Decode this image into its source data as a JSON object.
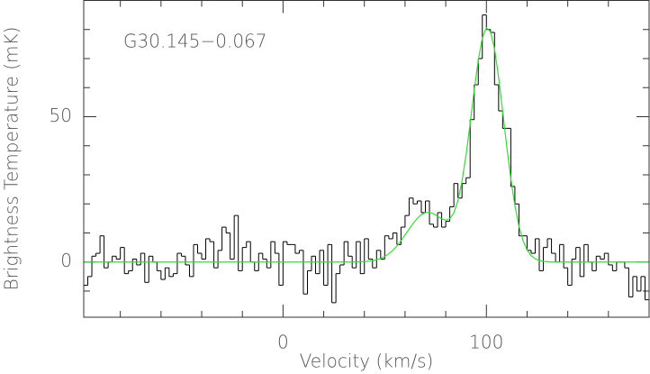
{
  "chart_data": {
    "type": "step",
    "annotation": "G30.145−0.067",
    "xlabel": "Velocity (km/s)",
    "ylabel": "Brightness Temperature (mK)",
    "xlim": [
      -98,
      180
    ],
    "ylim": [
      -19,
      90
    ],
    "xticks": [
      0,
      100
    ],
    "yticks": [
      0,
      50
    ],
    "xminor_ticks": [
      -80,
      -60,
      -40,
      -20,
      20,
      40,
      60,
      80,
      120,
      140,
      160
    ],
    "yminor_ticks": [
      -10,
      10,
      20,
      30,
      40,
      60,
      70,
      80
    ],
    "series": [
      {
        "type": "step",
        "color": "#000000",
        "x": [
          -97,
          -95,
          -93,
          -91,
          -89,
          -87,
          -85,
          -83,
          -81,
          -79,
          -77,
          -75,
          -73,
          -71,
          -69,
          -67,
          -65,
          -63,
          -61,
          -59,
          -57,
          -55,
          -53,
          -51,
          -49,
          -47,
          -45,
          -43,
          -41,
          -39,
          -37,
          -35,
          -33,
          -31,
          -29,
          -27,
          -25,
          -23,
          -21,
          -19,
          -17,
          -15,
          -13,
          -11,
          -9,
          -7,
          -5,
          -3,
          -1,
          1,
          3,
          5,
          7,
          9,
          11,
          13,
          15,
          17,
          19,
          21,
          23,
          25,
          27,
          29,
          31,
          33,
          35,
          37,
          39,
          41,
          43,
          45,
          47,
          49,
          51,
          53,
          55,
          57,
          59,
          61,
          63,
          65,
          67,
          69,
          71,
          73,
          75,
          77,
          79,
          81,
          83,
          85,
          87,
          89,
          91,
          93,
          95,
          97,
          99,
          101,
          103,
          105,
          107,
          109,
          111,
          113,
          115,
          117,
          119,
          121,
          123,
          125,
          127,
          129,
          131,
          133,
          135,
          137,
          139,
          141,
          143,
          145,
          147,
          149,
          151,
          153,
          155,
          157,
          159,
          161,
          163,
          165,
          167,
          169,
          171,
          173,
          175,
          177,
          179
        ],
        "values": [
          -8,
          -5,
          2,
          3,
          9,
          -2,
          0,
          2,
          1,
          5,
          -4,
          -3,
          1,
          -1,
          3,
          -7,
          2,
          0,
          -3,
          -6,
          -2,
          -5,
          -4,
          3,
          2,
          -1,
          -5,
          6,
          3,
          1,
          8,
          7,
          -2,
          4,
          12,
          10,
          1,
          16,
          -3,
          5,
          7,
          0,
          -3,
          3,
          1,
          -2,
          7,
          3,
          -8,
          7,
          6,
          6,
          3,
          4,
          -11,
          -3,
          2,
          -4,
          4,
          -8,
          6,
          -14,
          -4,
          -1,
          7,
          2,
          -2,
          7,
          -4,
          8,
          1,
          -2,
          4,
          1,
          9,
          8,
          10,
          6,
          12,
          16,
          22,
          20,
          21,
          17,
          21,
          13,
          12,
          17,
          12,
          14,
          19,
          27,
          22,
          27,
          29,
          49,
          61,
          70,
          85,
          80,
          79,
          61,
          52,
          46,
          46,
          26,
          20,
          9,
          9,
          4,
          3,
          8,
          -3,
          5,
          8,
          3,
          0,
          6,
          -2,
          -8,
          1,
          5,
          -5,
          6,
          0,
          -3,
          2,
          1,
          3,
          -1,
          -3,
          0,
          0,
          -2,
          -12,
          -5,
          -10,
          -5,
          -13
        ]
      },
      {
        "type": "line",
        "color": "#33dd33",
        "x": [
          -98,
          36,
          38,
          40,
          42,
          44,
          46,
          48,
          50,
          52,
          54,
          56,
          58,
          60,
          62,
          64,
          66,
          68,
          70,
          72,
          74,
          76,
          78,
          80,
          82,
          84,
          86,
          88,
          90,
          92,
          94,
          96,
          98,
          100,
          102,
          104,
          106,
          108,
          110,
          112,
          114,
          116,
          118,
          120,
          122,
          124,
          126,
          128,
          130,
          132,
          134,
          136,
          180
        ],
        "values": [
          0,
          0,
          0.1,
          0.1,
          0.3,
          0.4,
          0.8,
          1.2,
          1.9,
          2.8,
          4,
          5.5,
          7.3,
          9.3,
          11.3,
          13.3,
          15,
          16.3,
          17,
          17.1,
          16.6,
          15.7,
          14.9,
          14.4,
          14.9,
          16.9,
          21.1,
          27.8,
          36.8,
          47.7,
          59.1,
          69.5,
          77.1,
          80.6,
          79.2,
          73.3,
          63.6,
          51.9,
          39.8,
          28.7,
          19.4,
          12.3,
          7.4,
          4.1,
          2.2,
          1.1,
          0.5,
          0.2,
          0.1,
          0,
          0,
          0,
          0
        ]
      }
    ]
  }
}
